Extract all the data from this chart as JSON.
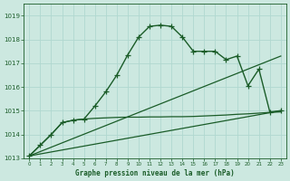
{
  "title": "Graphe pression niveau de la mer (hPa)",
  "bg_color": "#cce8e0",
  "grid_color": "#b0d8d0",
  "line_color": "#1a5c28",
  "ylim": [
    1013,
    1019.5
  ],
  "xlim": [
    -0.5,
    23.5
  ],
  "yticks": [
    1013,
    1014,
    1015,
    1016,
    1017,
    1018,
    1019
  ],
  "xticks": [
    0,
    1,
    2,
    3,
    4,
    5,
    6,
    7,
    8,
    9,
    10,
    11,
    12,
    13,
    14,
    15,
    16,
    17,
    18,
    19,
    20,
    21,
    22,
    23
  ],
  "series1_x": [
    0,
    1,
    2,
    3,
    4,
    5,
    6,
    7,
    8,
    9,
    10,
    11,
    12,
    13,
    14,
    15,
    16,
    17,
    18,
    19,
    20,
    21,
    22,
    23
  ],
  "series1_y": [
    1013.1,
    1013.55,
    1014.0,
    1014.5,
    1014.6,
    1014.65,
    1015.2,
    1015.8,
    1016.5,
    1017.35,
    1018.1,
    1018.55,
    1018.6,
    1018.55,
    1018.1,
    1017.5,
    1017.5,
    1017.5,
    1017.15,
    1017.3,
    1016.05,
    1016.75,
    1014.95,
    1015.0
  ],
  "series2_x": [
    0,
    1,
    2,
    3,
    4,
    5,
    6,
    7,
    8,
    9,
    10,
    11,
    12,
    13,
    14,
    15,
    16,
    17,
    18,
    19,
    20,
    21,
    22,
    23
  ],
  "series2_y": [
    1013.1,
    1013.55,
    1014.0,
    1014.5,
    1014.6,
    1014.65,
    1014.68,
    1014.7,
    1014.72,
    1014.73,
    1014.73,
    1014.74,
    1014.74,
    1014.75,
    1014.75,
    1014.76,
    1014.78,
    1014.8,
    1014.82,
    1014.85,
    1014.87,
    1014.9,
    1014.93,
    1014.95
  ],
  "series3_x": [
    0,
    23
  ],
  "series3_y": [
    1013.1,
    1017.3
  ],
  "series4_x": [
    0,
    23
  ],
  "series4_y": [
    1013.1,
    1015.0
  ]
}
